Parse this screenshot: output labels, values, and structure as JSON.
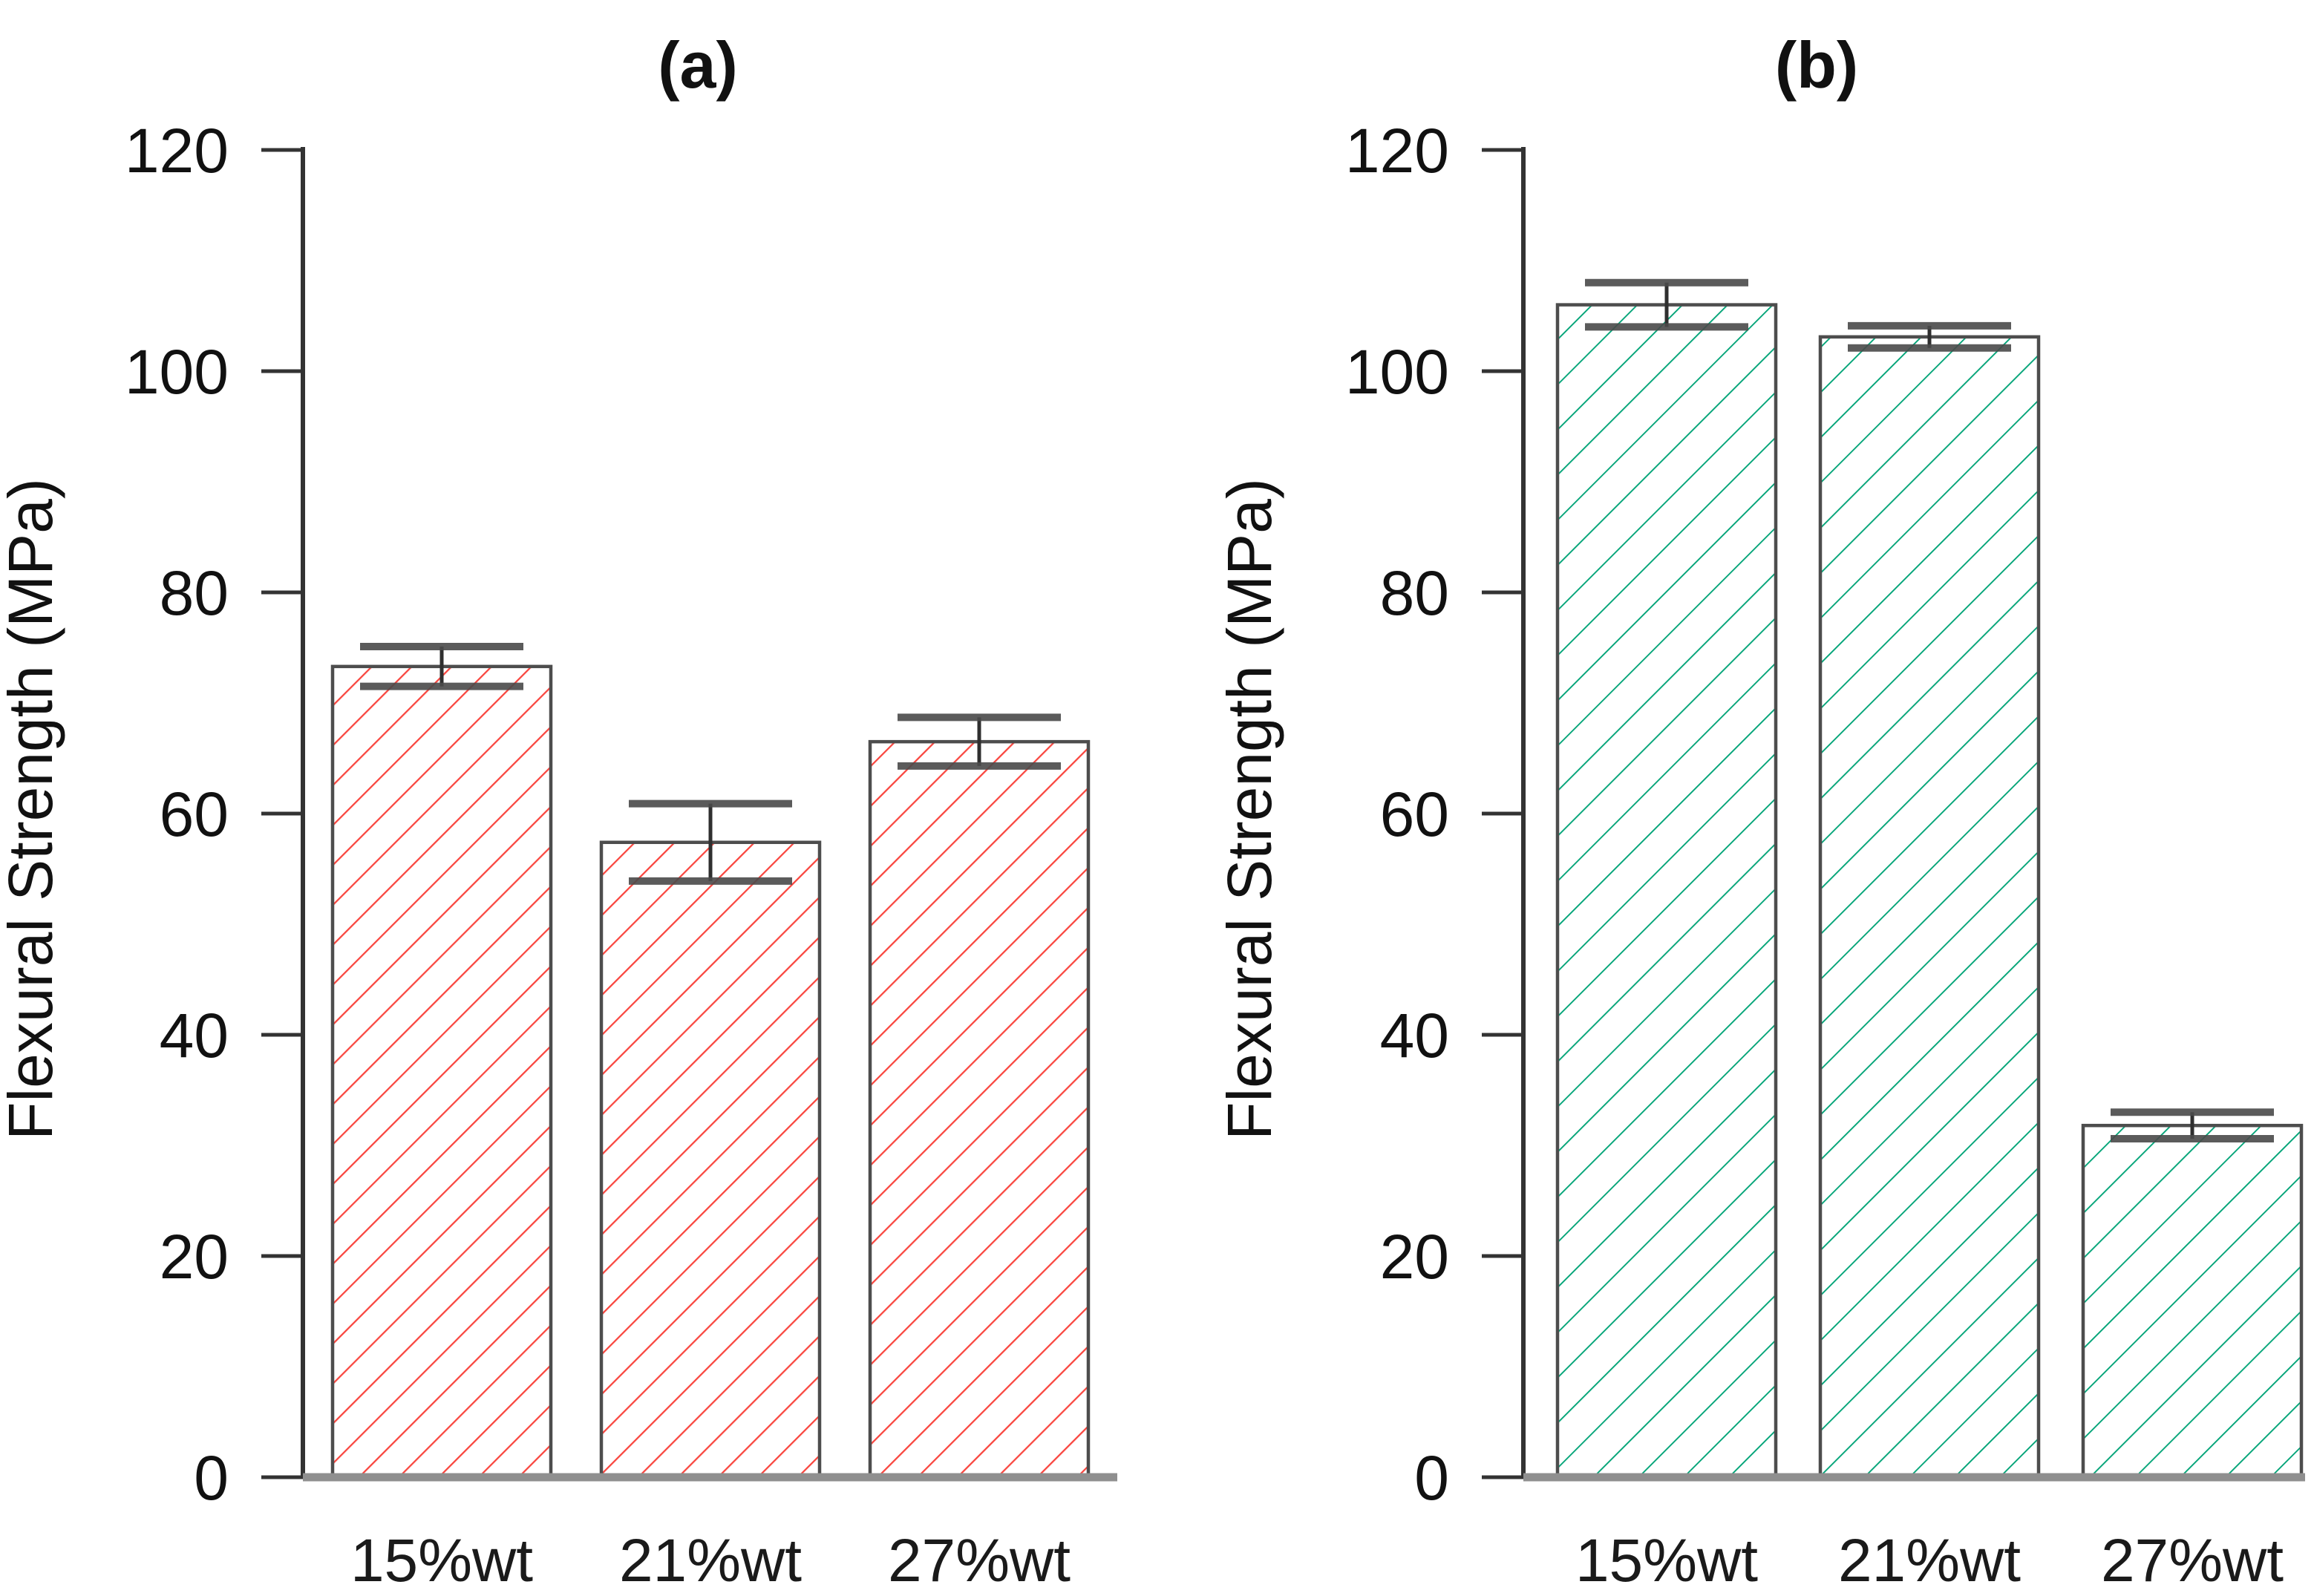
{
  "figure": {
    "panel_a_title": "(a)",
    "panel_b_title": "(b)",
    "y_axis_label": "Flexural Strength (MPa)",
    "colors": {
      "hatch_a": "#f9453e",
      "hatch_b": "#00a376",
      "bar_border": "#4d4d4d",
      "axis": "#333333",
      "error_bar": "#2f2f2f",
      "baseline": "#8f8f8f",
      "text": "#111111"
    }
  },
  "chart_data": [
    {
      "id": "a",
      "type": "bar",
      "title": "(a)",
      "ylabel": "Flexural Strength (MPa)",
      "xlabel": "",
      "categories": [
        "15%wt",
        "21%wt",
        "27%wt"
      ],
      "values": [
        73.3,
        57.4,
        66.5
      ],
      "error_bars": [
        1.8,
        3.5,
        2.2
      ],
      "ylim": [
        0,
        120
      ],
      "yticks": [
        0,
        20,
        40,
        60,
        80,
        100,
        120
      ],
      "grid": false,
      "legend": "none",
      "hatch_style": "forward-diagonal",
      "hatch_color": "#f9453e"
    },
    {
      "id": "b",
      "type": "bar",
      "title": "(b)",
      "ylabel": "Flexural Strength (MPa)",
      "xlabel": "",
      "categories": [
        "15%wt",
        "21%wt",
        "27%wt"
      ],
      "values": [
        106.0,
        103.1,
        31.8
      ],
      "error_bars": [
        2.0,
        1.0,
        1.2
      ],
      "ylim": [
        0,
        120
      ],
      "yticks": [
        0,
        20,
        40,
        60,
        80,
        100,
        120
      ],
      "grid": false,
      "legend": "none",
      "hatch_style": "forward-diagonal",
      "hatch_color": "#00a376"
    }
  ]
}
